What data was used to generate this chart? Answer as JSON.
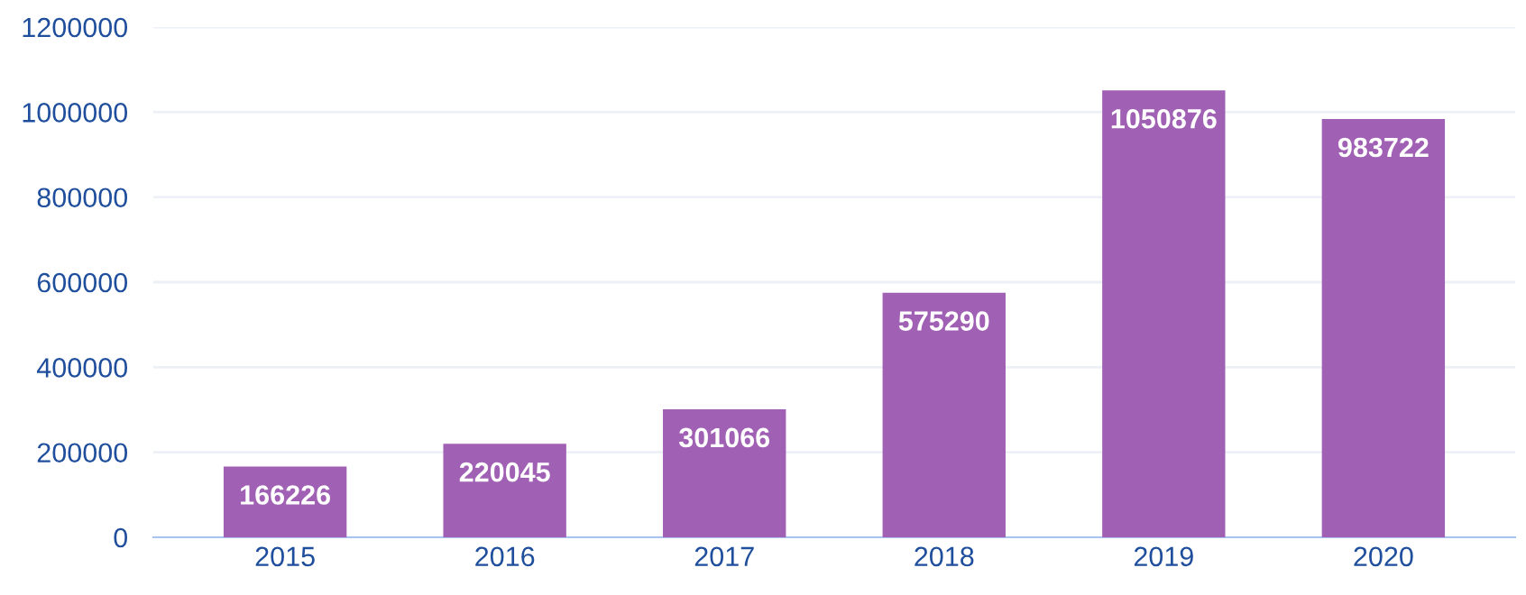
{
  "chart_data": {
    "type": "bar",
    "categories": [
      "2015",
      "2016",
      "2017",
      "2018",
      "2019",
      "2020"
    ],
    "values": [
      166226,
      220045,
      301066,
      575290,
      1050876,
      983722
    ],
    "color": "#a061b5",
    "ylim": [
      0,
      1200000
    ],
    "yticks": [
      0,
      200000,
      400000,
      600000,
      800000,
      1000000,
      1200000
    ],
    "grid": "y",
    "data_labels": true
  }
}
